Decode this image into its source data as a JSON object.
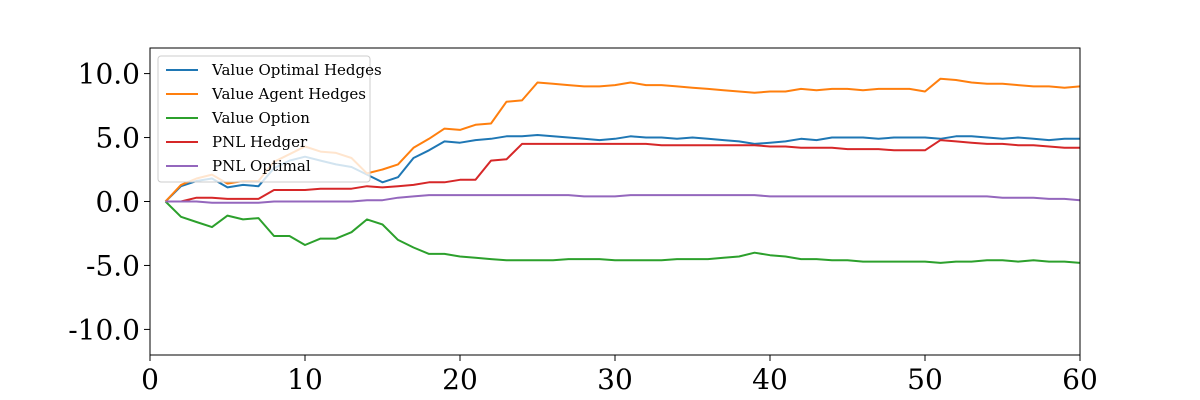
{
  "chart_data": {
    "type": "line",
    "title": "",
    "xlabel": "",
    "ylabel": "",
    "xlim": [
      0,
      60
    ],
    "ylim": [
      -12,
      12
    ],
    "xticks": [
      0,
      10,
      20,
      30,
      40,
      50,
      60
    ],
    "xtick_labels": [
      "0",
      "10",
      "20",
      "30",
      "40",
      "50",
      "60"
    ],
    "yticks": [
      10,
      5,
      0,
      -5,
      -10
    ],
    "ytick_labels": [
      "10.0",
      "5.0",
      "0.0",
      "-5.0",
      "-10.0"
    ],
    "grid": false,
    "legend": {
      "placement": "top-left"
    },
    "x": [
      1,
      2,
      3,
      4,
      5,
      6,
      7,
      8,
      9,
      10,
      11,
      12,
      13,
      14,
      15,
      16,
      17,
      18,
      19,
      20,
      21,
      22,
      23,
      24,
      25,
      26,
      27,
      28,
      29,
      30,
      31,
      32,
      33,
      34,
      35,
      36,
      37,
      38,
      39,
      40,
      41,
      42,
      43,
      44,
      45,
      46,
      47,
      48,
      49,
      50,
      51,
      52,
      53,
      54,
      55,
      56,
      57,
      58,
      59,
      60
    ],
    "series": [
      {
        "name": "Value Optimal Hedges",
        "color": "#1f77b4",
        "values": [
          0.0,
          1.2,
          1.6,
          1.8,
          1.1,
          1.3,
          1.2,
          2.6,
          3.2,
          3.5,
          3.2,
          2.9,
          2.7,
          2.1,
          1.5,
          1.9,
          3.4,
          4.0,
          4.7,
          4.6,
          4.8,
          4.9,
          5.1,
          5.1,
          5.2,
          5.1,
          5.0,
          4.9,
          4.8,
          4.9,
          5.1,
          5.0,
          5.0,
          4.9,
          5.0,
          4.9,
          4.8,
          4.7,
          4.5,
          4.6,
          4.7,
          4.9,
          4.8,
          5.0,
          5.0,
          5.0,
          4.9,
          5.0,
          5.0,
          5.0,
          4.9,
          5.1,
          5.1,
          5.0,
          4.9,
          5.0,
          4.9,
          4.8,
          4.9,
          4.9
        ]
      },
      {
        "name": "Value Agent Hedges",
        "color": "#ff7f0e",
        "values": [
          0.0,
          1.3,
          1.8,
          2.1,
          1.4,
          1.6,
          1.6,
          3.1,
          3.7,
          4.3,
          3.9,
          3.8,
          3.4,
          2.2,
          2.5,
          2.9,
          4.2,
          4.9,
          5.7,
          5.6,
          6.0,
          6.1,
          7.8,
          7.9,
          9.3,
          9.2,
          9.1,
          9.0,
          9.0,
          9.1,
          9.3,
          9.1,
          9.1,
          9.0,
          8.9,
          8.8,
          8.7,
          8.6,
          8.5,
          8.6,
          8.6,
          8.8,
          8.7,
          8.8,
          8.8,
          8.7,
          8.8,
          8.8,
          8.8,
          8.6,
          9.6,
          9.5,
          9.3,
          9.2,
          9.2,
          9.1,
          9.0,
          9.0,
          8.9,
          9.0
        ]
      },
      {
        "name": "Value Option",
        "color": "#2ca02c",
        "values": [
          0.0,
          -1.2,
          -1.6,
          -2.0,
          -1.1,
          -1.4,
          -1.3,
          -2.7,
          -2.7,
          -3.4,
          -2.9,
          -2.9,
          -2.4,
          -1.4,
          -1.8,
          -3.0,
          -3.6,
          -4.1,
          -4.1,
          -4.3,
          -4.4,
          -4.5,
          -4.6,
          -4.6,
          -4.6,
          -4.6,
          -4.5,
          -4.5,
          -4.5,
          -4.6,
          -4.6,
          -4.6,
          -4.6,
          -4.5,
          -4.5,
          -4.5,
          -4.4,
          -4.3,
          -4.0,
          -4.2,
          -4.3,
          -4.5,
          -4.5,
          -4.6,
          -4.6,
          -4.7,
          -4.7,
          -4.7,
          -4.7,
          -4.7,
          -4.8,
          -4.7,
          -4.7,
          -4.6,
          -4.6,
          -4.7,
          -4.6,
          -4.7,
          -4.7,
          -4.8
        ]
      },
      {
        "name": "PNL Hedger",
        "color": "#d62728",
        "values": [
          0.0,
          0.0,
          0.3,
          0.3,
          0.2,
          0.2,
          0.2,
          0.9,
          0.9,
          0.9,
          1.0,
          1.0,
          1.0,
          1.2,
          1.1,
          1.2,
          1.3,
          1.5,
          1.5,
          1.7,
          1.7,
          3.2,
          3.3,
          4.5,
          4.5,
          4.5,
          4.5,
          4.5,
          4.5,
          4.5,
          4.5,
          4.5,
          4.4,
          4.4,
          4.4,
          4.4,
          4.4,
          4.4,
          4.4,
          4.3,
          4.3,
          4.2,
          4.2,
          4.2,
          4.1,
          4.1,
          4.1,
          4.0,
          4.0,
          4.0,
          4.8,
          4.7,
          4.6,
          4.5,
          4.5,
          4.4,
          4.4,
          4.3,
          4.2,
          4.2
        ]
      },
      {
        "name": "PNL Optimal",
        "color": "#9467bd",
        "values": [
          0.0,
          0.0,
          0.0,
          -0.1,
          -0.1,
          -0.1,
          -0.1,
          0.0,
          0.0,
          0.0,
          0.0,
          0.0,
          0.0,
          0.1,
          0.1,
          0.3,
          0.4,
          0.5,
          0.5,
          0.5,
          0.5,
          0.5,
          0.5,
          0.5,
          0.5,
          0.5,
          0.5,
          0.4,
          0.4,
          0.4,
          0.5,
          0.5,
          0.5,
          0.5,
          0.5,
          0.5,
          0.5,
          0.5,
          0.5,
          0.4,
          0.4,
          0.4,
          0.4,
          0.4,
          0.4,
          0.4,
          0.4,
          0.4,
          0.4,
          0.4,
          0.4,
          0.4,
          0.4,
          0.4,
          0.3,
          0.3,
          0.3,
          0.2,
          0.2,
          0.1
        ]
      }
    ]
  }
}
